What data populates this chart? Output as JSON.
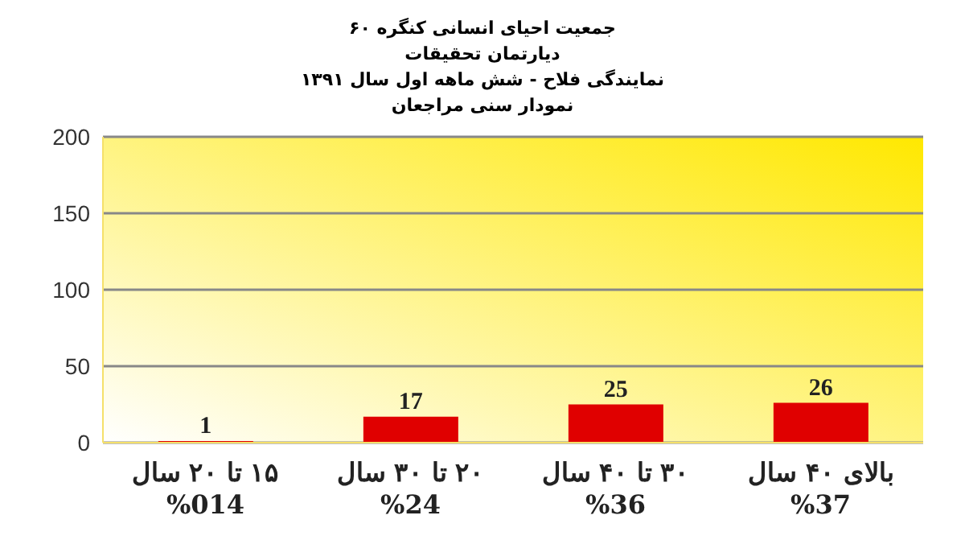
{
  "chart_data": {
    "type": "bar",
    "title": "جمعیت احیای انسانی کنگره ۶۰",
    "subtitle": "دیارتمان تحقیقات\nنمایندگی فلاح  - شش ماهه اول سال ۱۳۹۱\nنمودار سنی مراجعان",
    "categories": [
      "۱۵ تا ۲۰ سال\n%014",
      "۲۰ تا ۳۰ سال\n%24",
      "۳۰ تا ۴۰ سال\n%36",
      "بالای ۴۰ سال\n%37"
    ],
    "values": [
      1,
      17,
      25,
      26
    ],
    "color": "#e00000",
    "ylim": [
      0,
      200
    ],
    "yticks": [
      0,
      50,
      100,
      150,
      200
    ],
    "grid": "y",
    "data_labels": true
  }
}
